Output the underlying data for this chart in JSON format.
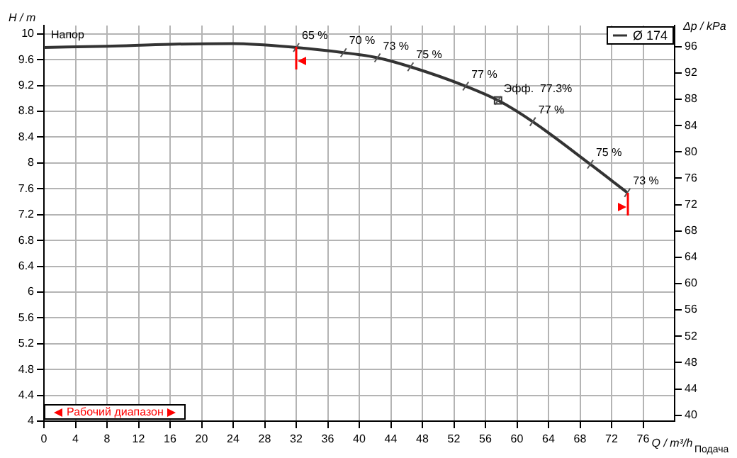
{
  "chart_data": {
    "type": "line",
    "title": "Напор",
    "xlabel": "Q / m³/h",
    "ylabel": "H / m",
    "y2label": "Δp / kPa",
    "series": [
      {
        "name": "Ø 174",
        "color": "#333333",
        "x": [
          0,
          8,
          16,
          24,
          32,
          38,
          42.3,
          46.5,
          53.5,
          57.6,
          62,
          69.3,
          74
        ],
        "values": [
          9.79,
          9.81,
          9.84,
          9.85,
          9.79,
          9.71,
          9.63,
          9.49,
          9.19,
          8.97,
          8.64,
          7.98,
          7.54
        ]
      },
      {
        "type": "scatter",
        "marker": "square",
        "color": "#333333",
        "x": [
          57.6
        ],
        "values": [
          8.97
        ]
      }
    ],
    "xlim": [
      0,
      80
    ],
    "xticks": [
      0,
      4,
      8,
      12,
      16,
      20,
      24,
      28,
      32,
      36,
      40,
      44,
      48,
      52,
      56,
      60,
      64,
      68,
      72,
      76
    ],
    "ylim": [
      4,
      10.13
    ],
    "yticks": [
      4,
      4.4,
      4.8,
      5.2,
      5.6,
      6,
      6.4,
      6.8,
      7.2,
      7.6,
      8,
      8.4,
      8.8,
      9.2,
      9.6,
      10
    ],
    "y2lim": [
      39.1,
      99.2
    ],
    "y2ticks": [
      40,
      44,
      48,
      52,
      56,
      60,
      64,
      68,
      72,
      76,
      80,
      84,
      88,
      92,
      96
    ],
    "annotations": [
      {
        "text": "65 %",
        "x": 32,
        "y": 9.79
      },
      {
        "text": "70 %",
        "x": 38,
        "y": 9.71
      },
      {
        "text": "73 %",
        "x": 42.3,
        "y": 9.63
      },
      {
        "text": "75 %",
        "x": 46.5,
        "y": 9.49
      },
      {
        "text": "77 %",
        "x": 53.5,
        "y": 9.19
      },
      {
        "text": "Эфф.  77.3%",
        "x": 57.6,
        "y": 8.97
      },
      {
        "text": "77 %",
        "x": 62,
        "y": 8.64
      },
      {
        "text": "75 %",
        "x": 69.3,
        "y": 7.98
      },
      {
        "text": "73 %",
        "x": 74,
        "y": 7.54
      },
      "Рабочий диапазон",
      "Подача"
    ],
    "grid": true,
    "legend": "top right"
  }
}
